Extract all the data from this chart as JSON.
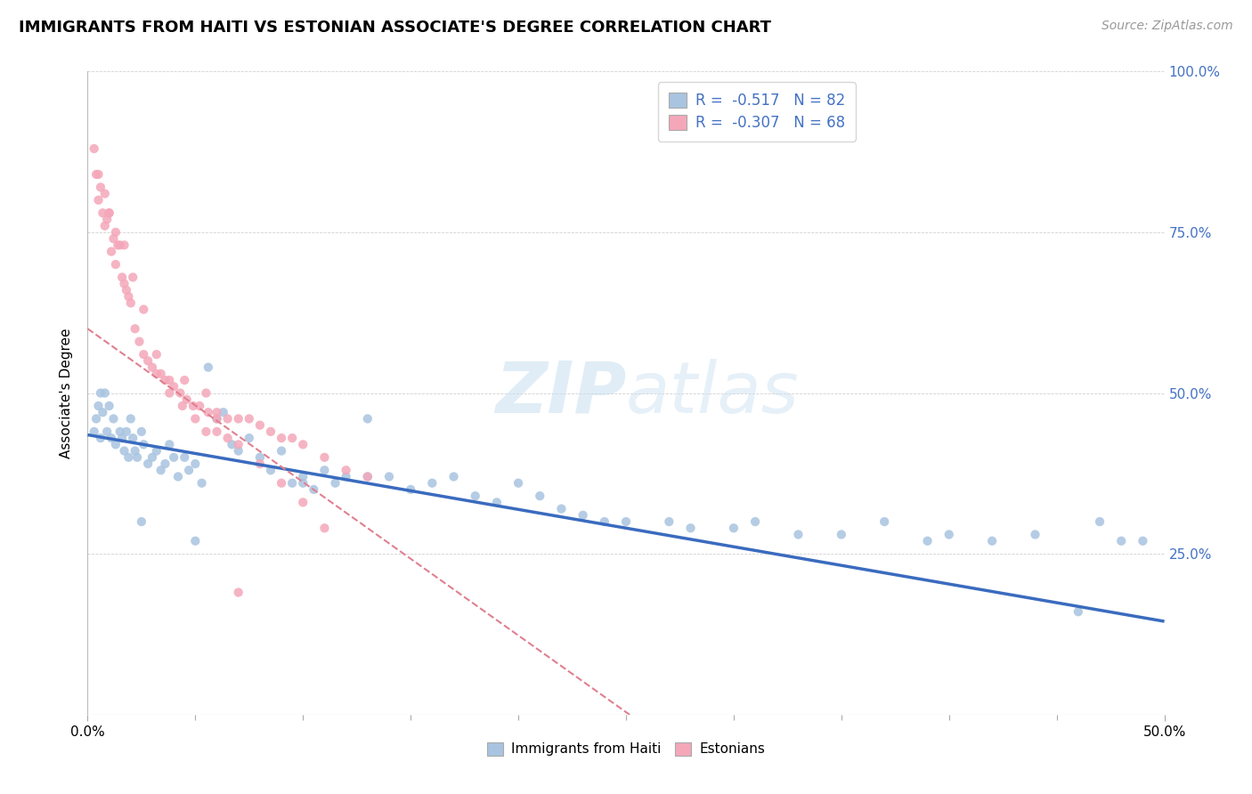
{
  "title": "IMMIGRANTS FROM HAITI VS ESTONIAN ASSOCIATE'S DEGREE CORRELATION CHART",
  "source": "Source: ZipAtlas.com",
  "ylabel": "Associate's Degree",
  "color_haiti": "#a8c4e0",
  "color_estonian": "#f4a7b9",
  "trendline_haiti_color": "#3a6bbf",
  "trendline_estonian_color": "#e08090",
  "xlim": [
    0.0,
    0.5
  ],
  "ylim": [
    0.0,
    1.0
  ],
  "yticks": [
    0.0,
    0.25,
    0.5,
    0.75,
    1.0
  ],
  "ytick_labels": [
    "",
    "25.0%",
    "50.0%",
    "75.0%",
    "100.0%"
  ],
  "xticks_major": [
    0.0,
    0.5
  ],
  "xtick_major_labels": [
    "0.0%",
    "50.0%"
  ],
  "xticks_minor": [
    0.05,
    0.1,
    0.15,
    0.2,
    0.25,
    0.3,
    0.35,
    0.4,
    0.45
  ],
  "haiti_trend_x": [
    0.0,
    0.5
  ],
  "haiti_trend_y": [
    0.435,
    0.145
  ],
  "estonian_trend_x": [
    0.0,
    0.26
  ],
  "estonian_trend_y": [
    0.6,
    -0.02
  ],
  "haiti_scatter_x": [
    0.003,
    0.004,
    0.005,
    0.006,
    0.006,
    0.007,
    0.008,
    0.009,
    0.01,
    0.011,
    0.012,
    0.013,
    0.015,
    0.016,
    0.017,
    0.018,
    0.019,
    0.02,
    0.021,
    0.022,
    0.023,
    0.025,
    0.026,
    0.028,
    0.03,
    0.032,
    0.034,
    0.036,
    0.038,
    0.04,
    0.042,
    0.045,
    0.047,
    0.05,
    0.053,
    0.056,
    0.06,
    0.063,
    0.067,
    0.07,
    0.075,
    0.08,
    0.085,
    0.09,
    0.095,
    0.1,
    0.105,
    0.11,
    0.115,
    0.12,
    0.13,
    0.14,
    0.15,
    0.16,
    0.17,
    0.18,
    0.19,
    0.2,
    0.21,
    0.22,
    0.23,
    0.24,
    0.25,
    0.27,
    0.28,
    0.3,
    0.31,
    0.33,
    0.35,
    0.37,
    0.39,
    0.4,
    0.42,
    0.44,
    0.46,
    0.47,
    0.48,
    0.49,
    0.025,
    0.05,
    0.1,
    0.13
  ],
  "haiti_scatter_y": [
    0.44,
    0.46,
    0.48,
    0.5,
    0.43,
    0.47,
    0.5,
    0.44,
    0.48,
    0.43,
    0.46,
    0.42,
    0.44,
    0.43,
    0.41,
    0.44,
    0.4,
    0.46,
    0.43,
    0.41,
    0.4,
    0.44,
    0.42,
    0.39,
    0.4,
    0.41,
    0.38,
    0.39,
    0.42,
    0.4,
    0.37,
    0.4,
    0.38,
    0.39,
    0.36,
    0.54,
    0.46,
    0.47,
    0.42,
    0.41,
    0.43,
    0.4,
    0.38,
    0.41,
    0.36,
    0.37,
    0.35,
    0.38,
    0.36,
    0.37,
    0.37,
    0.37,
    0.35,
    0.36,
    0.37,
    0.34,
    0.33,
    0.36,
    0.34,
    0.32,
    0.31,
    0.3,
    0.3,
    0.3,
    0.29,
    0.29,
    0.3,
    0.28,
    0.28,
    0.3,
    0.27,
    0.28,
    0.27,
    0.28,
    0.16,
    0.3,
    0.27,
    0.27,
    0.3,
    0.27,
    0.36,
    0.46
  ],
  "estonian_scatter_x": [
    0.003,
    0.004,
    0.005,
    0.006,
    0.007,
    0.008,
    0.009,
    0.01,
    0.011,
    0.012,
    0.013,
    0.014,
    0.015,
    0.016,
    0.017,
    0.018,
    0.019,
    0.02,
    0.022,
    0.024,
    0.026,
    0.028,
    0.03,
    0.032,
    0.034,
    0.036,
    0.038,
    0.04,
    0.043,
    0.046,
    0.049,
    0.052,
    0.056,
    0.06,
    0.065,
    0.07,
    0.075,
    0.08,
    0.085,
    0.09,
    0.095,
    0.1,
    0.11,
    0.12,
    0.13,
    0.005,
    0.008,
    0.01,
    0.013,
    0.017,
    0.021,
    0.026,
    0.032,
    0.038,
    0.044,
    0.05,
    0.055,
    0.06,
    0.065,
    0.07,
    0.08,
    0.09,
    0.1,
    0.11,
    0.045,
    0.055,
    0.06,
    0.07
  ],
  "estonian_scatter_y": [
    0.88,
    0.84,
    0.8,
    0.82,
    0.78,
    0.76,
    0.77,
    0.78,
    0.72,
    0.74,
    0.7,
    0.73,
    0.73,
    0.68,
    0.67,
    0.66,
    0.65,
    0.64,
    0.6,
    0.58,
    0.56,
    0.55,
    0.54,
    0.53,
    0.53,
    0.52,
    0.5,
    0.51,
    0.5,
    0.49,
    0.48,
    0.48,
    0.47,
    0.46,
    0.46,
    0.46,
    0.46,
    0.45,
    0.44,
    0.43,
    0.43,
    0.42,
    0.4,
    0.38,
    0.37,
    0.84,
    0.81,
    0.78,
    0.75,
    0.73,
    0.68,
    0.63,
    0.56,
    0.52,
    0.48,
    0.46,
    0.44,
    0.44,
    0.43,
    0.42,
    0.39,
    0.36,
    0.33,
    0.29,
    0.52,
    0.5,
    0.47,
    0.19
  ],
  "legend1_label": "R =  -0.517   N = 82",
  "legend2_label": "R =  -0.307   N = 68",
  "bottom_legend1": "Immigrants from Haiti",
  "bottom_legend2": "Estonians"
}
